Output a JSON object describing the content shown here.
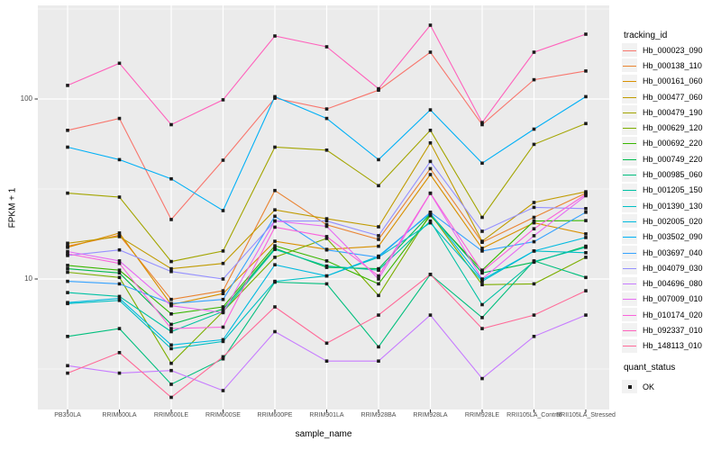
{
  "figure": {
    "background": "#FFFFFF",
    "panel_background": "#EBEBEB",
    "gridline_color": "#FFFFFF",
    "tick_color": "#333333",
    "tick_text_color": "#4D4D4D",
    "point_color": "#1A1A1A"
  },
  "chart_data": {
    "type": "line",
    "title": "",
    "xlabel": "sample_name",
    "ylabel": "FPKM + 1",
    "y_scale": "log10",
    "ylim": [
      1.9,
      330
    ],
    "y_ticks": [
      10,
      100
    ],
    "y_minor_ticks": [
      3.162,
      31.62,
      316.2
    ],
    "grid": "on",
    "legend_title": "tracking_id",
    "legend_position": "right",
    "point_legend": {
      "title": "quant_status",
      "label": "OK",
      "marker": "black-square"
    },
    "categories": [
      "PB350LA",
      "RRIM600LA",
      "RRIM600LE",
      "RRIM600SE",
      "RRIM600PE",
      "RRIM901LA",
      "RRIM928BA",
      "RRIM928LA",
      "RRIM928LE",
      "RRII105LA_Control",
      "RRII105LA_Stressed"
    ],
    "series": [
      {
        "name": "Hb_000023_090",
        "color": "#F8766D",
        "values": [
          67,
          78,
          21.4,
          45.7,
          101,
          88,
          112,
          182,
          72,
          128,
          143
        ]
      },
      {
        "name": "Hb_000138_110",
        "color": "#EA8331",
        "values": [
          15.2,
          17.5,
          7.7,
          8.6,
          31,
          20,
          16.6,
          41,
          16,
          22,
          30
        ]
      },
      {
        "name": "Hb_000161_060",
        "color": "#D89000",
        "values": [
          15.0,
          18.0,
          7.2,
          8.3,
          16.2,
          14.6,
          15.2,
          38,
          14.8,
          20.5,
          17.8
        ]
      },
      {
        "name": "Hb_000477_060",
        "color": "#C09B00",
        "values": [
          15.8,
          17.2,
          11.4,
          12.2,
          24.2,
          21.6,
          19.5,
          57,
          16.2,
          26.6,
          30.5
        ]
      },
      {
        "name": "Hb_000479_190",
        "color": "#A3A500",
        "values": [
          30,
          28.5,
          12.5,
          14.3,
          54,
          52,
          33,
          67,
          22,
          56,
          73
        ]
      },
      {
        "name": "Hb_000629_120",
        "color": "#7CAE00",
        "values": [
          10.9,
          10.2,
          3.4,
          6.6,
          13.2,
          16.8,
          8.1,
          23,
          9.3,
          9.4,
          13.2
        ]
      },
      {
        "name": "Hb_000692_220",
        "color": "#39B600",
        "values": [
          11.9,
          11.2,
          6.4,
          7.0,
          15.3,
          12.6,
          9.4,
          22.5,
          11.2,
          21,
          21.1
        ]
      },
      {
        "name": "Hb_000749_220",
        "color": "#00BB4E",
        "values": [
          11.4,
          10.8,
          5.6,
          6.8,
          14.8,
          11.6,
          11.4,
          23,
          10.8,
          12.4,
          15.2
        ]
      },
      {
        "name": "Hb_000985_060",
        "color": "#00BF7D",
        "values": [
          4.8,
          5.3,
          2.6,
          3.6,
          9.6,
          9.4,
          4.2,
          10.6,
          6.1,
          12.6,
          10.2
        ]
      },
      {
        "name": "Hb_001205_150",
        "color": "#00C1A3",
        "values": [
          8.4,
          8.0,
          5.1,
          6.6,
          14.6,
          11.8,
          11.2,
          21,
          7.2,
          12.5,
          15.0
        ]
      },
      {
        "name": "Hb_001390_130",
        "color": "#00BFC4",
        "values": [
          7.3,
          7.6,
          4.1,
          4.5,
          9.7,
          10.4,
          13.2,
          20.5,
          9.7,
          14.3,
          14.0
        ]
      },
      {
        "name": "Hb_002005_020",
        "color": "#00BAE0",
        "values": [
          7.4,
          7.8,
          4.3,
          4.6,
          12.0,
          10.4,
          13.4,
          23.2,
          9.9,
          14.3,
          17.0
        ]
      },
      {
        "name": "Hb_003502_090",
        "color": "#00B0F6",
        "values": [
          54,
          46,
          36,
          24,
          103,
          78,
          46,
          87,
          44,
          68,
          103
        ]
      },
      {
        "name": "Hb_003697_040",
        "color": "#35A2FF",
        "values": [
          9.7,
          9.4,
          7.3,
          7.7,
          22.3,
          14.5,
          13.2,
          23.5,
          14.3,
          16.1,
          23.5
        ]
      },
      {
        "name": "Hb_004079_030",
        "color": "#9590FF",
        "values": [
          13.5,
          14.5,
          11.0,
          10.0,
          21.0,
          21.0,
          17.4,
          45,
          18.4,
          25,
          24.6
        ]
      },
      {
        "name": "Hb_004696_080",
        "color": "#C77CFF",
        "values": [
          3.3,
          3.0,
          3.1,
          2.4,
          5.1,
          3.5,
          3.5,
          6.3,
          2.8,
          4.8,
          6.3
        ]
      },
      {
        "name": "Hb_007009_010",
        "color": "#E76BF3",
        "values": [
          14.2,
          12.6,
          7.1,
          6.5,
          21,
          19.6,
          10.0,
          29.9,
          10.0,
          17.4,
          29
        ]
      },
      {
        "name": "Hb_010174_020",
        "color": "#FA62DB",
        "values": [
          13.8,
          12.2,
          5.3,
          5.4,
          19.4,
          17.2,
          10.4,
          30,
          11.0,
          19,
          29.5
        ]
      },
      {
        "name": "Hb_092337_010",
        "color": "#FF62BC",
        "values": [
          119,
          158,
          72,
          99,
          224,
          195,
          114,
          257,
          74,
          182,
          229
        ]
      },
      {
        "name": "Hb_148113_010",
        "color": "#FF6A98",
        "values": [
          3.0,
          3.9,
          2.2,
          3.7,
          7.0,
          4.4,
          6.3,
          10.6,
          5.3,
          6.3,
          8.6
        ]
      }
    ]
  }
}
